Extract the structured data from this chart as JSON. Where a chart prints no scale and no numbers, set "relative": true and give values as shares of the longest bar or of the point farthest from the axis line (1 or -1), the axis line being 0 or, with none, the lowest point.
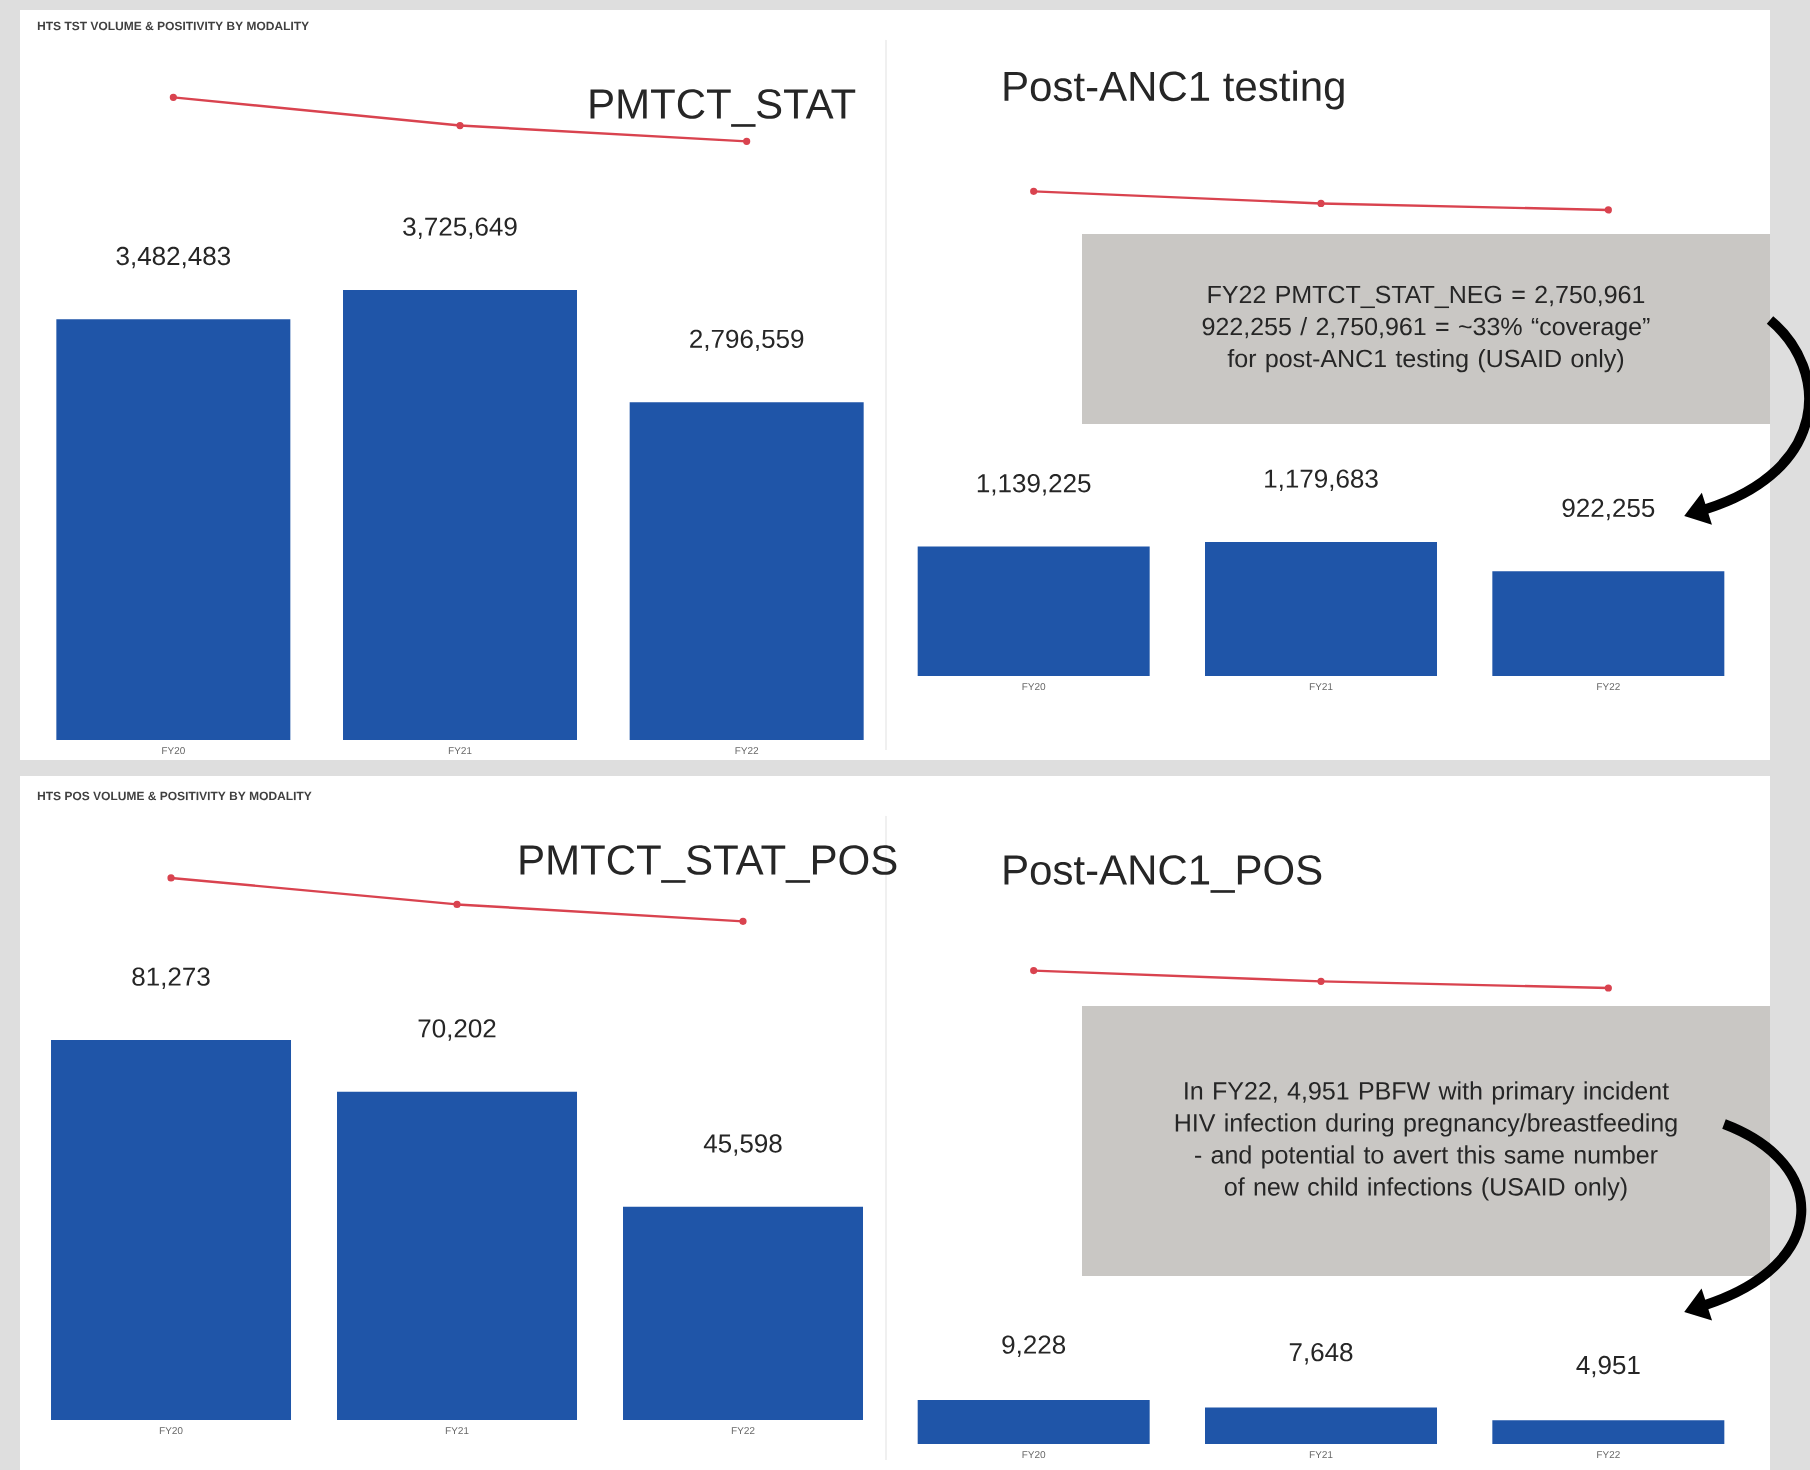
{
  "chart_data": [
    {
      "type": "line",
      "title": "PMTCT_STAT",
      "subtitle": "HTS TST VOLUME & POSITIVITY BY MODALITY",
      "relative": true,
      "categories": [
        null,
        null,
        null
      ],
      "color": "#d9434f",
      "marker": "circle",
      "values": [
        1,
        0.36,
        0
      ]
    },
    {
      "type": "bar",
      "categories": [
        "FY20",
        "FY21",
        "FY22"
      ],
      "color": "#1f55a8",
      "data_labels": true,
      "values": [
        3482483,
        3725649,
        2796559
      ],
      "value_labels": [
        "3,482,483",
        "3,725,649",
        "2,796,559"
      ]
    },
    {
      "type": "line",
      "title": "Post-ANC1 testing",
      "relative": true,
      "categories": [
        null,
        null,
        null
      ],
      "color": "#d9434f",
      "marker": "circle",
      "values": [
        1,
        0.35,
        0
      ]
    },
    {
      "type": "bar",
      "categories": [
        "FY20",
        "FY21",
        "FY22"
      ],
      "color": "#1f55a8",
      "data_labels": true,
      "values": [
        1139225,
        1179683,
        922255
      ],
      "value_labels": [
        "1,139,225",
        "1,179,683",
        "922,255"
      ],
      "annotations": [
        "FY22 PMTCT_STAT_NEG = 2,750,961 922,255 / 2,750,961 = ~33% “coverage” for post-ANC1 testing (USAID only)"
      ]
    },
    {
      "type": "line",
      "title": "PMTCT_STAT_POS",
      "subtitle": "HTS POS VOLUME & POSITIVITY BY MODALITY",
      "relative": true,
      "categories": [
        null,
        null,
        null
      ],
      "color": "#d9434f",
      "marker": "circle",
      "values": [
        1,
        0.39,
        0
      ]
    },
    {
      "type": "bar",
      "categories": [
        "FY20",
        "FY21",
        "FY22"
      ],
      "color": "#1f55a8",
      "data_labels": true,
      "values": [
        81273,
        70202,
        45598
      ],
      "value_labels": [
        "81,273",
        "70,202",
        "45,598"
      ]
    },
    {
      "type": "line",
      "title": "Post-ANC1_POS",
      "relative": true,
      "categories": [
        null,
        null,
        null
      ],
      "color": "#d9434f",
      "marker": "circle",
      "values": [
        1,
        0.38,
        0
      ]
    },
    {
      "type": "bar",
      "categories": [
        "FY20",
        "FY21",
        "FY22"
      ],
      "color": "#1f55a8",
      "data_labels": true,
      "values": [
        9228,
        7648,
        4951
      ],
      "value_labels": [
        "9,228",
        "7,648",
        "4,951"
      ],
      "annotations": [
        "In FY22, 4,951 PBFW with primary incident HIV infection during pregnancy/breastfeeding - and potential to avert this same number of new child infections (USAID only)"
      ]
    }
  ]
}
